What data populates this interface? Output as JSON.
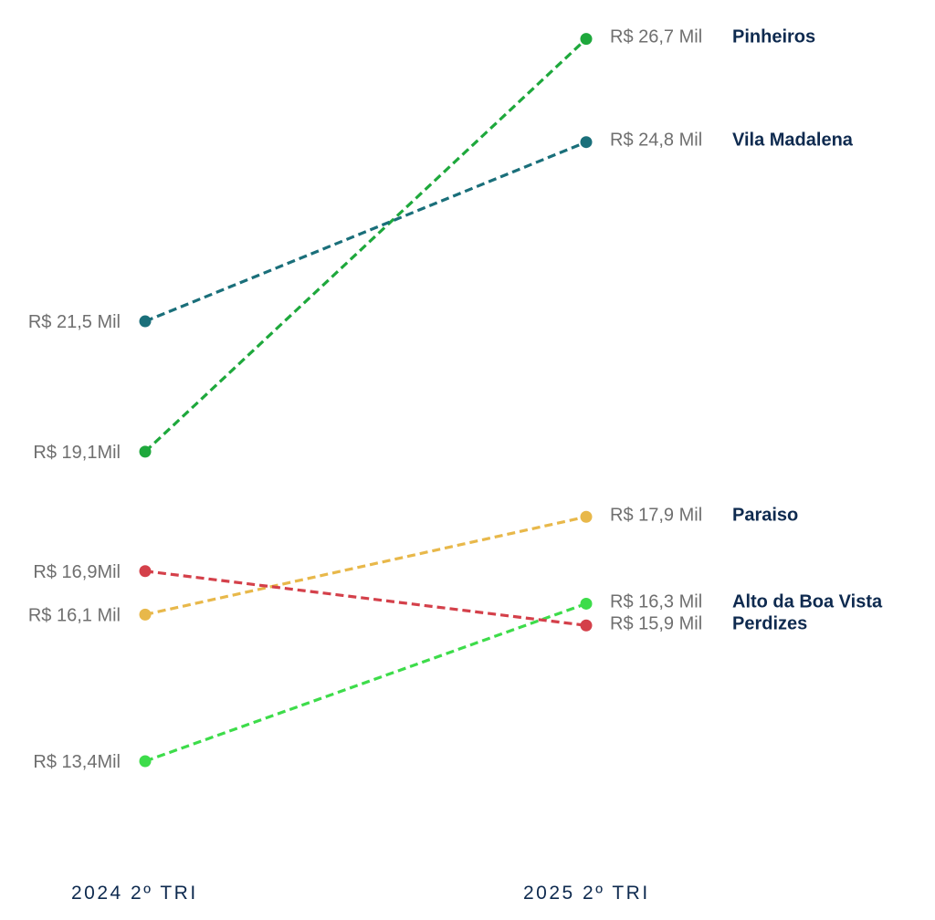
{
  "chart_data": {
    "type": "line",
    "subtype": "slope",
    "x": [
      "2024 2º TRI",
      "2025 2º TRI"
    ],
    "series": [
      {
        "name": "Pinheiros",
        "values": [
          19.1,
          26.7
        ],
        "labels": [
          "R$ 19,1Mil",
          "R$ 26,7 Mil"
        ],
        "color": "#1ea83c"
      },
      {
        "name": "Vila Madalena",
        "values": [
          21.5,
          24.8
        ],
        "labels": [
          "R$ 21,5 Mil",
          "R$ 24,8 Mil"
        ],
        "color": "#1a6f7a"
      },
      {
        "name": "Paraiso",
        "values": [
          16.1,
          17.9
        ],
        "labels": [
          "R$ 16,1 Mil",
          "R$ 17,9 Mil"
        ],
        "color": "#e8b84a"
      },
      {
        "name": "Alto da Boa Vista",
        "values": [
          13.4,
          16.3
        ],
        "labels": [
          "R$ 13,4Mil",
          "R$ 16,3 Mil"
        ],
        "color": "#3ddc4a"
      },
      {
        "name": "Perdizes",
        "values": [
          16.9,
          15.9
        ],
        "labels": [
          "R$ 16,9Mil",
          "R$ 15,9 Mil"
        ],
        "color": "#d4404a"
      }
    ],
    "line_style": "dashed",
    "legend": "right",
    "grid": false
  }
}
